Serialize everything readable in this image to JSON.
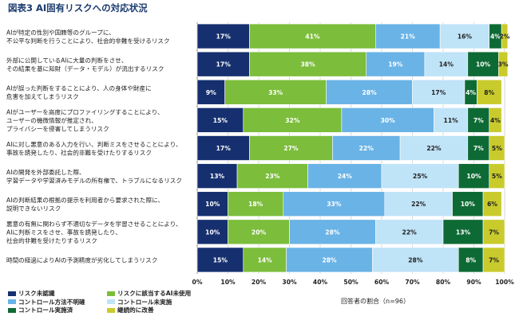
{
  "title": "図表3 AI固有リスクへの対応状況",
  "chart_data": {
    "type": "bar",
    "orientation": "horizontal",
    "stacked": true,
    "xlabel": "回答者の割合（n=96）",
    "xlim": [
      0,
      100
    ],
    "xticks": [
      "0%",
      "10%",
      "20%",
      "30%",
      "40%",
      "50%",
      "60%",
      "70%",
      "80%",
      "90%",
      "100%"
    ],
    "grid": true,
    "legend_position": "bottom-left",
    "categories": [
      [
        "AIが特定の性別や国籍等のグループに、",
        "不公平な判断を行うことにより、社会的非難を受けるリスク"
      ],
      [
        "外部に公開しているAIに大量の判断をさせ、",
        "その結果を基に知財（データ・モデル）が流出するリスク"
      ],
      [
        "AIが誤った判断をすることにより、人の身体や財産に",
        "危害を加えてしまうリスク"
      ],
      [
        "AIがユーザーを高度にプロファイリングすることにより、",
        "ユーザーの機微情報が推定され、",
        "プライバシーを侵害してしまうリスク"
      ],
      [
        "AIに対し悪意のある入力を行い、判断ミスをさせることにより、",
        "事故を誘発したり、社会的非難を受けたりするリスク"
      ],
      [
        "AIの開発を外部委託した際、",
        "学習データや学習済みモデルの所有権で、トラブルになるリスク"
      ],
      [
        "AIの判断結果の根拠の提示を利用者から要求された際に、",
        "説明できないリスク"
      ],
      [
        "悪意の有無に関わらず不適切なデータを学習させることにより、",
        "AIに判断ミスをさせ、事故を誘発したり、",
        "社会的非難を受けたりするリスク"
      ],
      [
        "時間の経過によりAIの予測精度が劣化してしまうリスク"
      ]
    ],
    "series": [
      {
        "name": "リスク未認識",
        "color": "#16306f",
        "label_color": "#ffffff",
        "values": [
          17,
          17,
          9,
          15,
          17,
          13,
          10,
          10,
          15
        ]
      },
      {
        "name": "リスクに該当するAI未使用",
        "color": "#7cbd3b",
        "label_color": "#ffffff",
        "values": [
          41,
          38,
          33,
          32,
          27,
          23,
          18,
          20,
          14
        ]
      },
      {
        "name": "コントロール方法不明確",
        "color": "#6ab3e6",
        "label_color": "#ffffff",
        "values": [
          21,
          19,
          28,
          30,
          22,
          24,
          33,
          28,
          28
        ]
      },
      {
        "name": "コントロール未実施",
        "color": "#bfe3f7",
        "label_color": "#222222",
        "values": [
          16,
          14,
          17,
          11,
          22,
          25,
          22,
          22,
          28
        ]
      },
      {
        "name": "コントロール実施済",
        "color": "#0e6a34",
        "label_color": "#ffffff",
        "values": [
          4,
          10,
          4,
          7,
          7,
          10,
          10,
          13,
          8
        ]
      },
      {
        "name": "継続的に改善",
        "color": "#c9cb2c",
        "label_color": "#222222",
        "values": [
          2,
          3,
          8,
          4,
          5,
          5,
          6,
          7,
          7
        ]
      }
    ],
    "value_labels": [
      [
        "17%",
        "41%",
        "21%",
        "16%",
        "4%",
        "2%"
      ],
      [
        "17%",
        "38%",
        "19%",
        "14%",
        "10%",
        "3%"
      ],
      [
        "9%",
        "33%",
        "28%",
        "17%",
        "4%",
        "8%"
      ],
      [
        "15%",
        "32%",
        "30%",
        "11%",
        "7%",
        "4%"
      ],
      [
        "17%",
        "27%",
        "22%",
        "22%",
        "7%",
        "5%"
      ],
      [
        "13%",
        "23%",
        "24%",
        "25%",
        "10%",
        "5%"
      ],
      [
        "10%",
        "18%",
        "33%",
        "22%",
        "10%",
        "6%"
      ],
      [
        "10%",
        "20%",
        "28%",
        "22%",
        "13%",
        "7%"
      ],
      [
        "15%",
        "14%",
        "28%",
        "28%",
        "8%",
        "7%"
      ]
    ]
  }
}
